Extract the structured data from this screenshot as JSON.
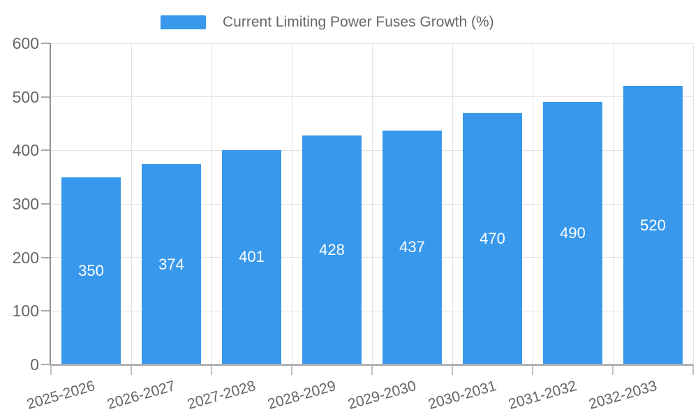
{
  "chart_data": {
    "type": "bar",
    "title": "Current Limiting Power Fuses Growth (%)",
    "series_name": "Current Limiting Power Fuses Growth (%)",
    "categories": [
      "2025-2026",
      "2026-2027",
      "2027-2028",
      "2028-2029",
      "2029-2030",
      "2030-2031",
      "2031-2032",
      "2032-2033"
    ],
    "values": [
      350,
      374,
      401,
      428,
      437,
      470,
      490,
      520
    ],
    "value_labels": [
      "350",
      "374",
      "401",
      "428",
      "437",
      "470",
      "490",
      "520"
    ],
    "xlabel": "",
    "ylabel": "",
    "ylim": [
      0,
      600
    ],
    "yticks": [
      0,
      100,
      200,
      300,
      400,
      500,
      600
    ],
    "grid": true,
    "legend_position": "top-center",
    "x_label_rotation_deg": -16,
    "colors": {
      "bar": "#3899EC",
      "bar_label": "#FFFFFF",
      "axis_text": "#666666",
      "gridline": "#E3E3E3",
      "axis_line_left": "#8E8E8E",
      "axis_line_bottom": "#B2B2B2",
      "background": "#FFFFFF"
    }
  }
}
